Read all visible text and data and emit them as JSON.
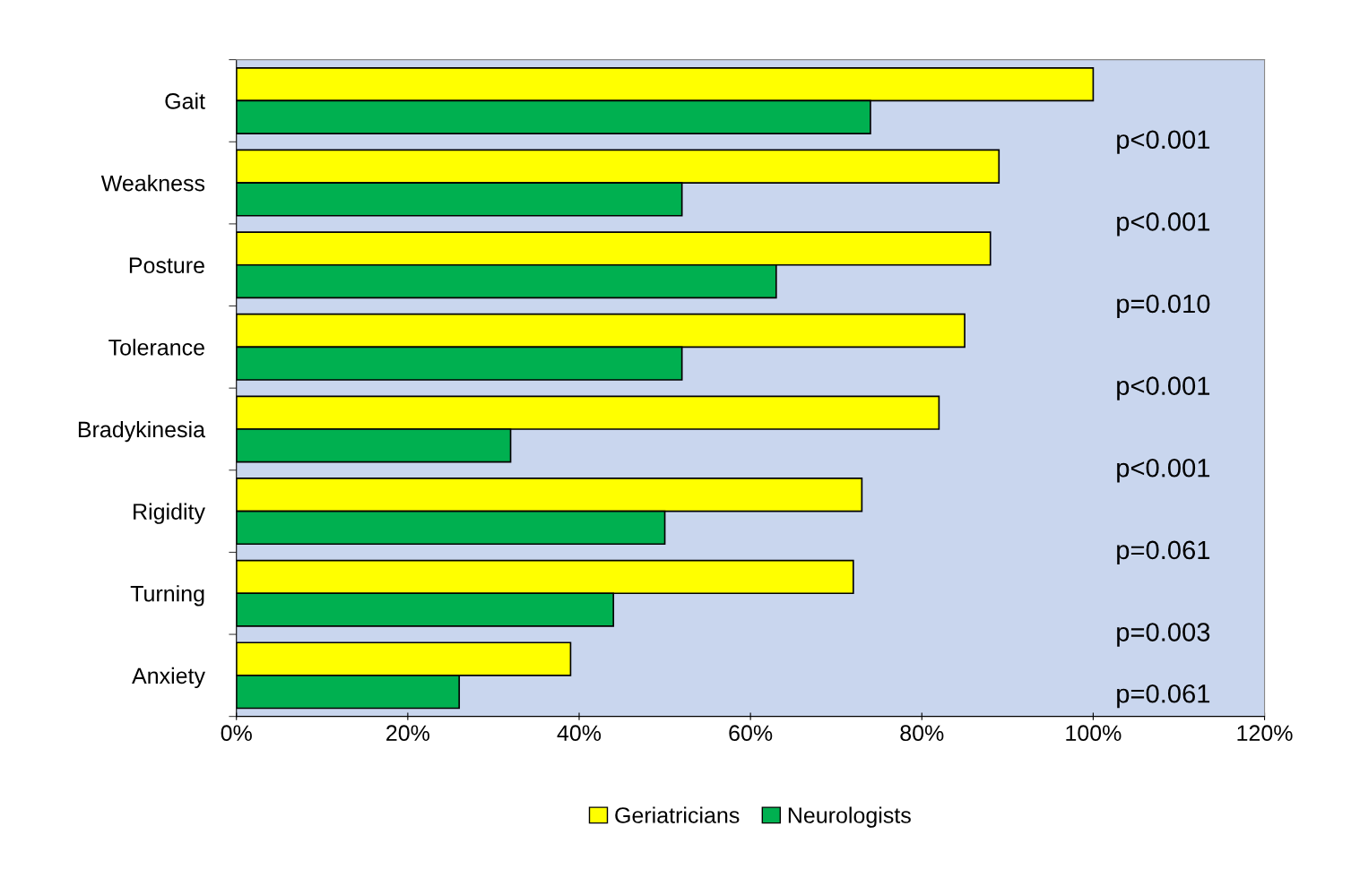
{
  "chart_data": {
    "type": "bar",
    "orientation": "horizontal",
    "categories": [
      "Gait",
      "Weakness",
      "Posture",
      "Tolerance",
      "Bradykinesia",
      "Rigidity",
      "Turning",
      "Anxiety"
    ],
    "series": [
      {
        "name": "Geriatricians",
        "color": "#ffff00",
        "values": [
          100,
          89,
          88,
          85,
          82,
          73,
          72,
          39
        ]
      },
      {
        "name": "Neurologists",
        "color": "#00b050",
        "values": [
          74,
          52,
          63,
          52,
          32,
          50,
          44,
          26
        ]
      }
    ],
    "xlim": [
      0,
      120
    ],
    "xticks": [
      {
        "value": 0,
        "label": "0%"
      },
      {
        "value": 20,
        "label": "20%"
      },
      {
        "value": 40,
        "label": "40%"
      },
      {
        "value": 60,
        "label": "60%"
      },
      {
        "value": 80,
        "label": "80%"
      },
      {
        "value": 100,
        "label": "100%"
      },
      {
        "value": 120,
        "label": "120%"
      }
    ],
    "annotations": [
      {
        "text": "p<0.001"
      },
      {
        "text": "p<0.001"
      },
      {
        "text": "p=0.010"
      },
      {
        "text": "p<0.001"
      },
      {
        "text": "p<0.001"
      },
      {
        "text": "p=0.061"
      },
      {
        "text": "p=0.003"
      },
      {
        "text": "p=0.061"
      }
    ],
    "grid": false,
    "legend": "bottom"
  }
}
